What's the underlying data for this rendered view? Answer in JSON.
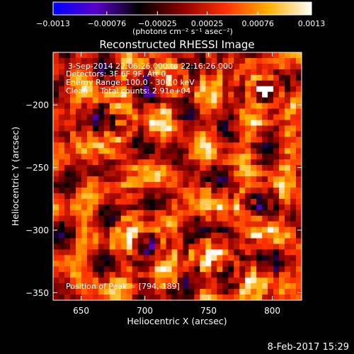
{
  "chart_data": {
    "type": "heatmap",
    "title": "Reconstructed RHESSI Image",
    "xlabel": "Heliocentric X (arcsec)",
    "ylabel": "Heliocentric Y (arcsec)",
    "xlim": [
      628,
      823
    ],
    "ylim": [
      -356,
      -158
    ],
    "xticks": [
      650,
      700,
      750,
      800
    ],
    "yticks": [
      -350,
      -300,
      -250,
      -200
    ],
    "xtick_labels": [
      "650",
      "700",
      "750",
      "800"
    ],
    "ytick_labels": [
      "−350",
      "−300",
      "−250",
      "−200"
    ],
    "colorbar": {
      "range": [
        -0.0013,
        0.0013
      ],
      "ticks": [
        -0.0013,
        -0.00076,
        -0.00025,
        0.00025,
        0.00076,
        0.0013
      ],
      "tick_labels": [
        "−0.0013",
        "−0.00076",
        "−0.00025",
        "0.00025",
        "0.00076",
        "0.0013"
      ],
      "units_label": "(photons cm⁻² s⁻¹ asec⁻²)",
      "colormap": [
        "#0000ff",
        "#5a00c8",
        "#000000",
        "#8c0000",
        "#ff3000",
        "#ffb000",
        "#ffffff"
      ]
    },
    "annotations": [
      "3-Sep-2014 22:06:26.000 to 22:16:26.000",
      "Detectors: 3F 6F 9F, Att 0",
      "Energy Range: 100.0 - 300.0 keV",
      "Clean     Total counts: 2.91e+04"
    ],
    "peak_label": "Position of Peak = [794,-189]",
    "peak": {
      "x": 794,
      "y": -189
    },
    "grid": false
  },
  "footer": {
    "timestamp": "8-Feb-2017 15:29"
  }
}
